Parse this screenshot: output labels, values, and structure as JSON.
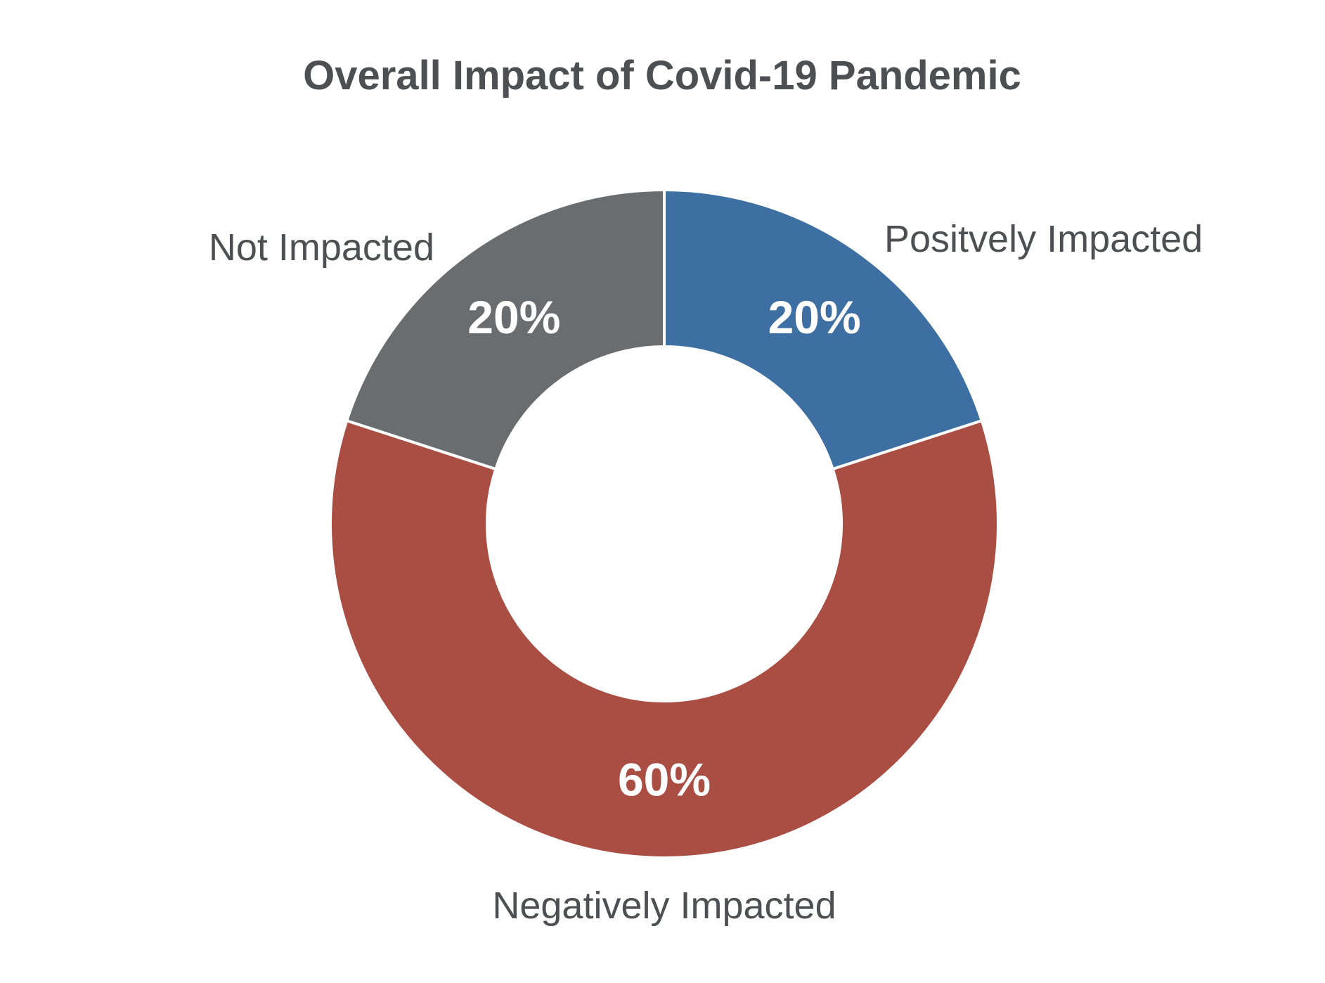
{
  "chart_data": {
    "type": "pie",
    "variant": "donut",
    "title": "Overall Impact of Covid-19 Pandemic",
    "start": "12 o'clock",
    "direction": "clockwise",
    "slices": [
      {
        "category": "Positvely Impacted",
        "value": 20,
        "value_label": "20%",
        "color": "#3d6fa2"
      },
      {
        "category": "Negatively Impacted",
        "value": 60,
        "value_label": "60%",
        "color": "#aa4e43"
      },
      {
        "category": "Not Impacted",
        "value": 20,
        "value_label": "20%",
        "color": "#6a6d70"
      }
    ],
    "separator_color": "#ffffff",
    "label_color": "#4d4f52",
    "value_label_color": "#ffffff"
  }
}
